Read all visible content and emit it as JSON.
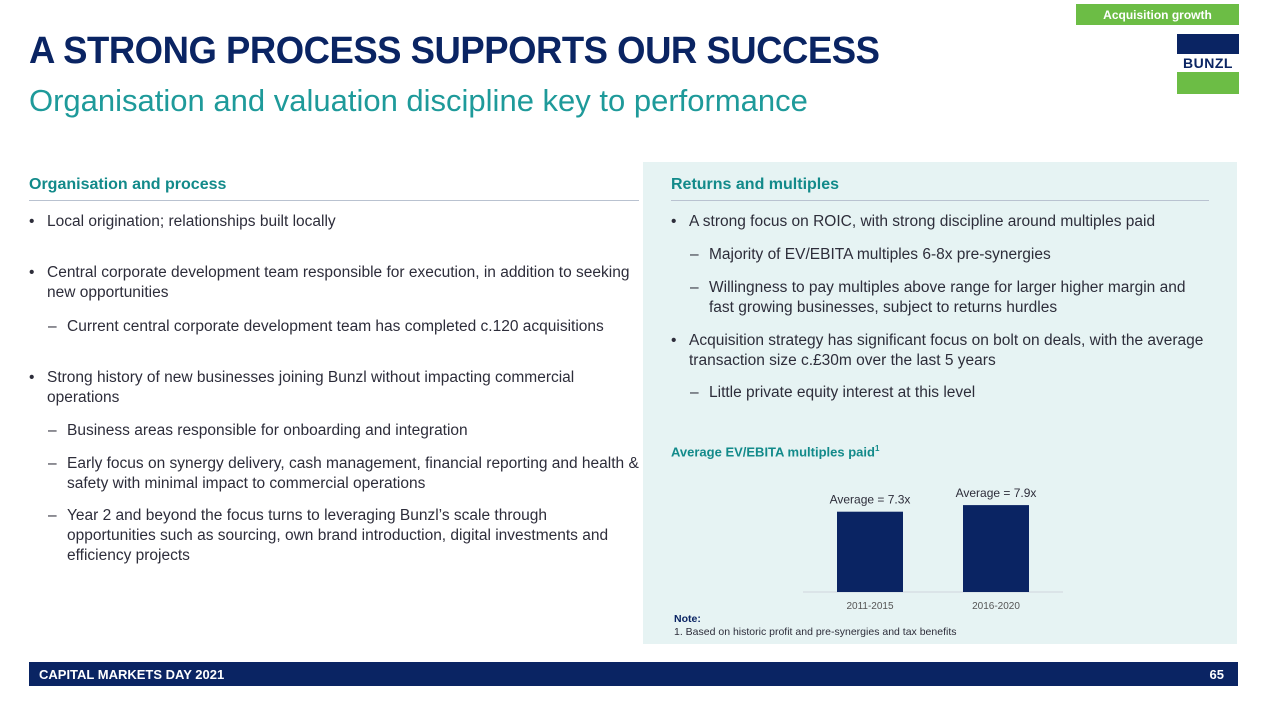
{
  "header": {
    "tag": "Acquisition growth",
    "logo_text": "BUNZL",
    "title": "A STRONG PROCESS SUPPORTS OUR SUCCESS",
    "subtitle": "Organisation and valuation discipline key to performance"
  },
  "left": {
    "heading": "Organisation and process",
    "bullets": [
      "Local origination; relationships built locally",
      "Central corporate development team responsible for execution, in addition to seeking new opportunities",
      "Current central corporate development team has completed c.120 acquisitions",
      "Strong history of new businesses joining Bunzl without impacting commercial operations",
      "Business areas responsible for onboarding and integration",
      "Early focus on synergy delivery, cash management, financial reporting and health & safety with minimal impact to commercial operations",
      "Year 2 and beyond the focus turns to leveraging Bunzl’s scale through opportunities such as sourcing, own brand introduction, digital investments and efficiency projects"
    ]
  },
  "right": {
    "heading": "Returns and multiples",
    "bullets": [
      "A strong focus on ROIC, with strong discipline around multiples paid",
      "Majority of EV/EBITA multiples 6-8x pre-synergies",
      "Willingness to pay multiples above range for larger higher margin and fast growing businesses, subject to returns hurdles",
      "Acquisition strategy has significant focus on bolt on deals, with the average transaction size c.£30m over the last 5 years",
      "Little private equity interest at this level"
    ],
    "chart_title": "Average EV/EBITA multiples paid",
    "chart_title_sup": "1",
    "note_heading": "Note:",
    "note_text": "1. Based on historic profit and pre-synergies and tax benefits"
  },
  "chart_data": {
    "type": "bar",
    "categories": [
      "2011-2015",
      "2016-2020"
    ],
    "values": [
      7.3,
      7.9
    ],
    "data_labels": [
      "Average = 7.3x",
      "Average = 7.9x"
    ],
    "title": "Average EV/EBITA multiples paid",
    "color": "#0a2463"
  },
  "footer": {
    "left": "CAPITAL MARKETS DAY 2021",
    "page": "65"
  },
  "colors": {
    "navy": "#0a2463",
    "teal": "#128a8a",
    "green": "#6cbd45",
    "panel": "#e6f3f3"
  }
}
